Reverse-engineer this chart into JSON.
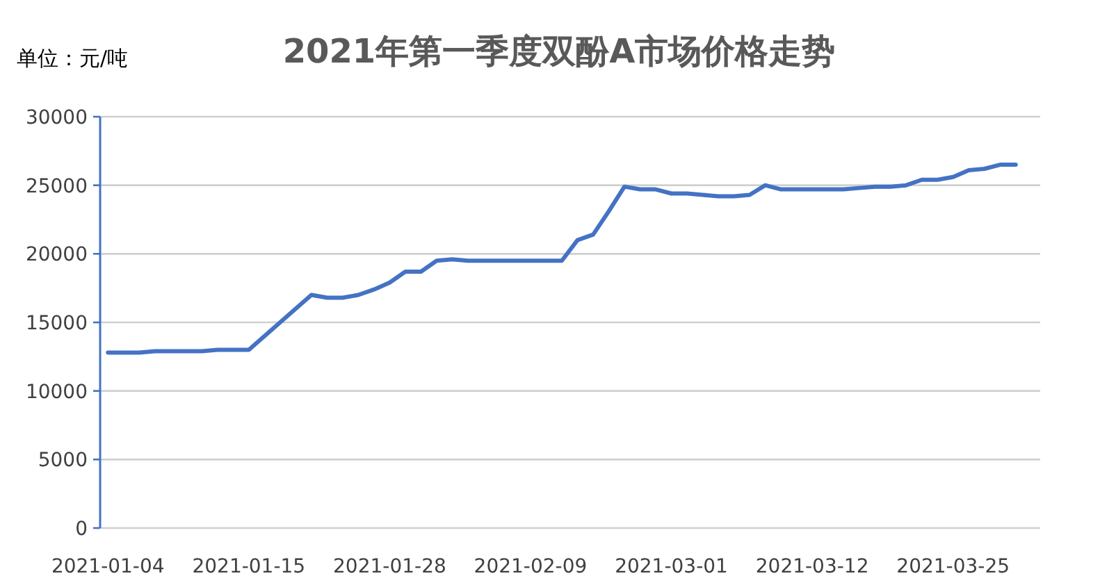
{
  "chart_data": {
    "type": "line",
    "title": "2021年第一季度双酚A市场价格走势",
    "ylabel": "单位：元/吨",
    "categories": [
      "2021-01-04",
      null,
      null,
      null,
      null,
      null,
      null,
      null,
      null,
      "2021-01-15",
      null,
      null,
      null,
      null,
      null,
      null,
      null,
      null,
      "2021-01-28",
      null,
      null,
      null,
      null,
      null,
      null,
      null,
      null,
      "2021-02-09",
      null,
      null,
      null,
      null,
      null,
      null,
      null,
      null,
      "2021-03-01",
      null,
      null,
      null,
      null,
      null,
      null,
      null,
      null,
      "2021-03-12",
      null,
      null,
      null,
      null,
      null,
      null,
      null,
      null,
      "2021-03-25",
      null,
      null,
      null,
      null
    ],
    "series": [
      {
        "color": "#4472c4",
        "values": [
          12800,
          12800,
          12800,
          12900,
          12900,
          12900,
          12900,
          13000,
          13000,
          13000,
          14000,
          15000,
          16000,
          17000,
          16800,
          16800,
          17000,
          17400,
          17900,
          18700,
          18700,
          19500,
          19600,
          19500,
          19500,
          19500,
          19500,
          19500,
          19500,
          19500,
          21000,
          21400,
          23100,
          24900,
          24700,
          24700,
          24400,
          24400,
          24300,
          24200,
          24200,
          24300,
          25000,
          24700,
          24700,
          24700,
          24700,
          24700,
          24800,
          24900,
          24900,
          25000,
          25400,
          25400,
          25600,
          26100,
          26200,
          26500,
          26500
        ]
      }
    ],
    "ylim": [
      0,
      30000
    ],
    "yticks": [
      0,
      5000,
      10000,
      15000,
      20000,
      25000,
      30000
    ],
    "grid": "y",
    "marker": "none",
    "line_style": "solid"
  }
}
